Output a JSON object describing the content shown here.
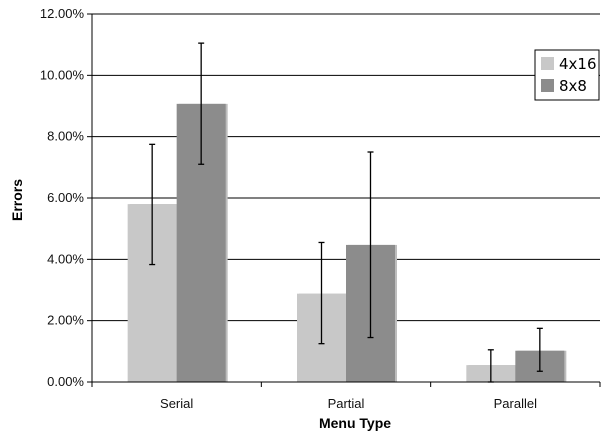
{
  "chart_data": {
    "type": "bar",
    "categories": [
      "Serial",
      "Partial",
      "Parallel"
    ],
    "series": [
      {
        "name": "4x16",
        "color": "#c8c8c8",
        "values": [
          5.8,
          2.88,
          0.55
        ],
        "error_low": [
          3.83,
          1.25,
          0.0
        ],
        "error_high": [
          7.75,
          4.55,
          1.05
        ]
      },
      {
        "name": "8x8",
        "color": "#8c8c8c",
        "values": [
          9.07,
          4.47,
          1.02
        ],
        "error_low": [
          7.1,
          1.45,
          0.35
        ],
        "error_high": [
          11.05,
          7.5,
          1.75
        ]
      }
    ],
    "title": "",
    "xlabel": "Menu Type",
    "ylabel": "Errors",
    "ylim": [
      0,
      12
    ],
    "yticks": [
      "0.00%",
      "2.00%",
      "4.00%",
      "6.00%",
      "8.00%",
      "10.00%",
      "12.00%"
    ],
    "grid": "horizontal",
    "legend_position": "top-right"
  }
}
